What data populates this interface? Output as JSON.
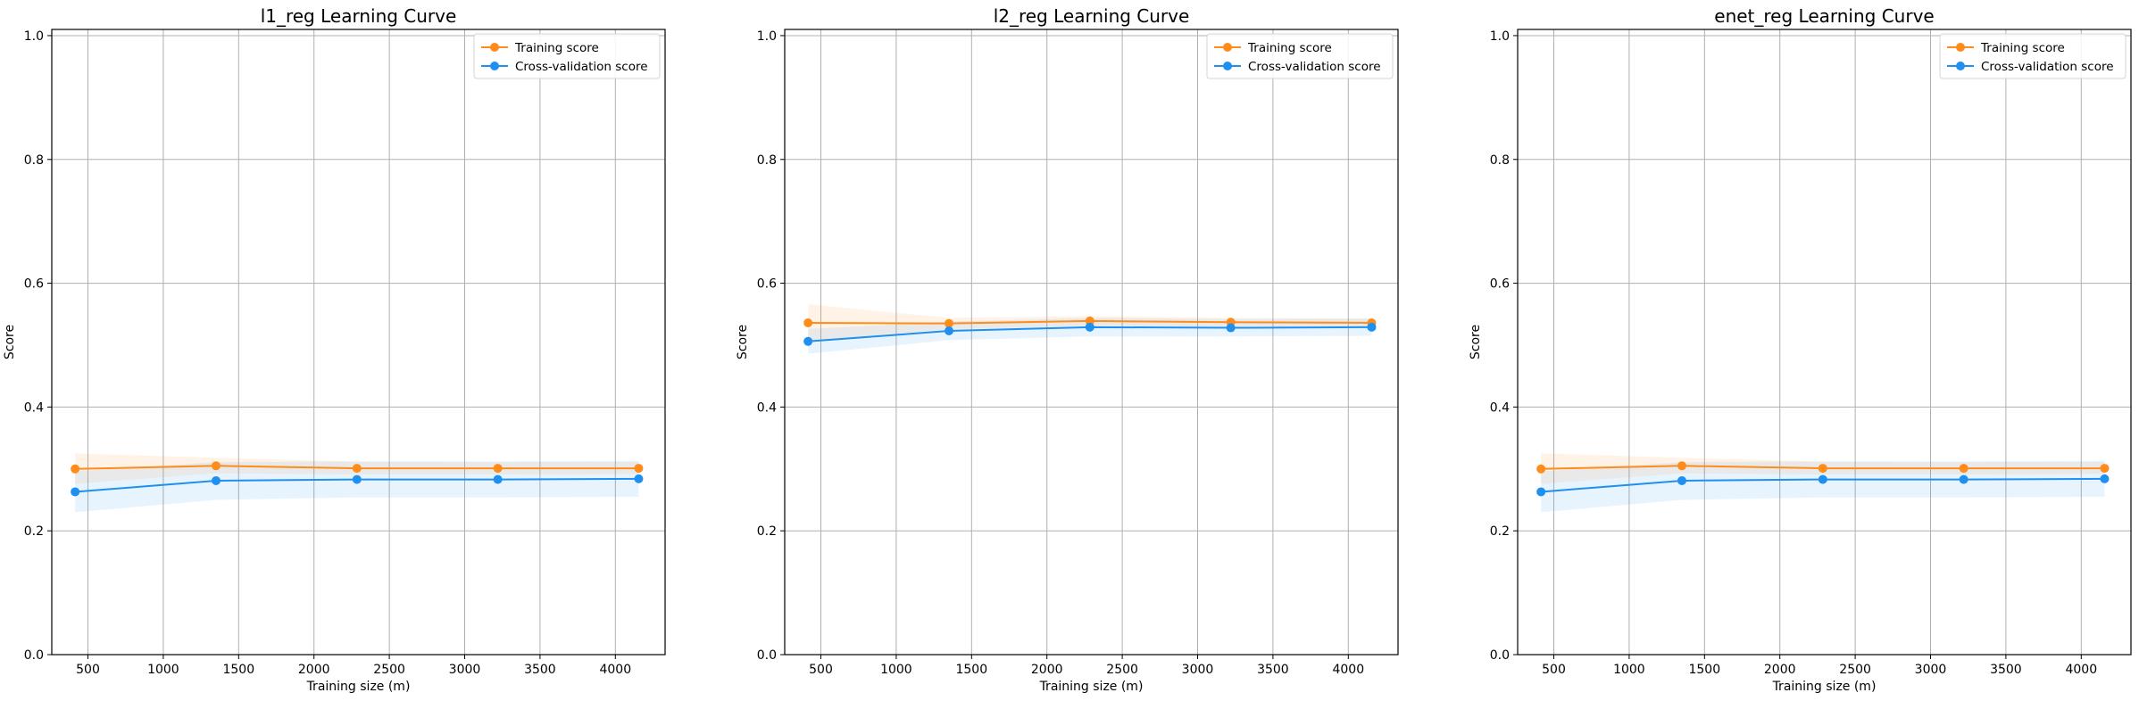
{
  "colors": {
    "training": "#ff8c1a",
    "cv": "#1f8ff0",
    "grid": "#b0b0b0",
    "axis": "#000000"
  },
  "chart_data": [
    {
      "type": "line",
      "title": "l1_reg Learning Curve",
      "xlabel": "Training size (m)",
      "ylabel": "Score",
      "xlim": [
        260,
        4330
      ],
      "ylim": [
        0.0,
        1.01
      ],
      "xticks": [
        500,
        1000,
        1500,
        2000,
        2500,
        3000,
        3500,
        4000
      ],
      "yticks": [
        0.0,
        0.2,
        0.4,
        0.6,
        0.8,
        1.0
      ],
      "grid": true,
      "legend_position": "top-right",
      "x": [
        415,
        1350,
        2285,
        3220,
        4155
      ],
      "series": [
        {
          "name": "Training score",
          "color_key": "training",
          "values": [
            0.3,
            0.305,
            0.301,
            0.301,
            0.301
          ],
          "band_low": [
            0.276,
            0.293,
            0.291,
            0.291,
            0.292
          ],
          "band_high": [
            0.325,
            0.318,
            0.312,
            0.311,
            0.311
          ]
        },
        {
          "name": "Cross-validation score",
          "color_key": "cv",
          "values": [
            0.263,
            0.281,
            0.283,
            0.283,
            0.284
          ],
          "band_low": [
            0.23,
            0.25,
            0.254,
            0.254,
            0.255
          ],
          "band_high": [
            0.296,
            0.311,
            0.312,
            0.312,
            0.313
          ]
        }
      ]
    },
    {
      "type": "line",
      "title": "l2_reg Learning Curve",
      "xlabel": "Training size (m)",
      "ylabel": "Score",
      "xlim": [
        260,
        4330
      ],
      "ylim": [
        0.0,
        1.01
      ],
      "xticks": [
        500,
        1000,
        1500,
        2000,
        2500,
        3000,
        3500,
        4000
      ],
      "yticks": [
        0.0,
        0.2,
        0.4,
        0.6,
        0.8,
        1.0
      ],
      "grid": true,
      "legend_position": "top-right",
      "x": [
        415,
        1350,
        2285,
        3220,
        4155
      ],
      "series": [
        {
          "name": "Training score",
          "color_key": "training",
          "values": [
            0.536,
            0.535,
            0.539,
            0.537,
            0.536
          ],
          "band_low": [
            0.506,
            0.526,
            0.531,
            0.53,
            0.53
          ],
          "band_high": [
            0.566,
            0.544,
            0.547,
            0.544,
            0.543
          ]
        },
        {
          "name": "Cross-validation score",
          "color_key": "cv",
          "values": [
            0.506,
            0.523,
            0.529,
            0.528,
            0.529
          ],
          "band_low": [
            0.486,
            0.508,
            0.514,
            0.514,
            0.515
          ],
          "band_high": [
            0.526,
            0.538,
            0.544,
            0.542,
            0.543
          ]
        }
      ]
    },
    {
      "type": "line",
      "title": "enet_reg Learning Curve",
      "xlabel": "Training size (m)",
      "ylabel": "Score",
      "xlim": [
        260,
        4330
      ],
      "ylim": [
        0.0,
        1.01
      ],
      "xticks": [
        500,
        1000,
        1500,
        2000,
        2500,
        3000,
        3500,
        4000
      ],
      "yticks": [
        0.0,
        0.2,
        0.4,
        0.6,
        0.8,
        1.0
      ],
      "grid": true,
      "legend_position": "top-right",
      "x": [
        415,
        1350,
        2285,
        3220,
        4155
      ],
      "series": [
        {
          "name": "Training score",
          "color_key": "training",
          "values": [
            0.3,
            0.305,
            0.301,
            0.301,
            0.301
          ],
          "band_low": [
            0.276,
            0.293,
            0.291,
            0.291,
            0.292
          ],
          "band_high": [
            0.325,
            0.318,
            0.312,
            0.311,
            0.311
          ]
        },
        {
          "name": "Cross-validation score",
          "color_key": "cv",
          "values": [
            0.263,
            0.281,
            0.283,
            0.283,
            0.284
          ],
          "band_low": [
            0.23,
            0.25,
            0.254,
            0.254,
            0.255
          ],
          "band_high": [
            0.296,
            0.311,
            0.312,
            0.312,
            0.313
          ]
        }
      ]
    }
  ]
}
